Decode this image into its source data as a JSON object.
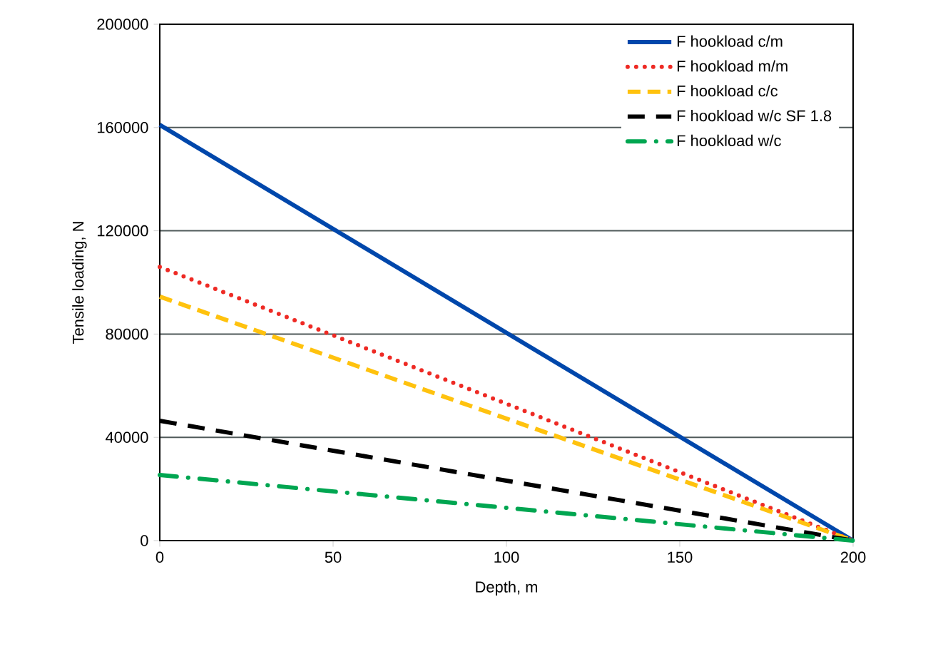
{
  "chart_data": {
    "type": "line",
    "xlabel": "Depth, m",
    "ylabel": "Tensile loading, N",
    "xlim": [
      0,
      200
    ],
    "ylim": [
      0,
      200000
    ],
    "xticks": [
      0,
      50,
      100,
      150,
      200
    ],
    "yticks": [
      0,
      40000,
      80000,
      120000,
      160000,
      200000
    ],
    "grid": "y",
    "legend": "top right",
    "x": [
      0,
      200
    ],
    "series": [
      {
        "name": "F hookload c/m",
        "color": "#0047ab",
        "values": [
          161000,
          0
        ],
        "line_style": "solid"
      },
      {
        "name": "F hookload m/m",
        "color": "#ee2a24",
        "values": [
          106000,
          0
        ],
        "line_style": "dotted"
      },
      {
        "name": "F hookload c/c",
        "color": "#ffc20e",
        "values": [
          94500,
          0
        ],
        "line_style": "dashed"
      },
      {
        "name": "F hookload w/c  SF 1.8",
        "color": "#000000",
        "values": [
          46400,
          0
        ],
        "line_style": "longdashed"
      },
      {
        "name": "F hookload w/c",
        "color": "#00a651",
        "values": [
          25400,
          0
        ],
        "line_style": "dashdot"
      }
    ]
  }
}
